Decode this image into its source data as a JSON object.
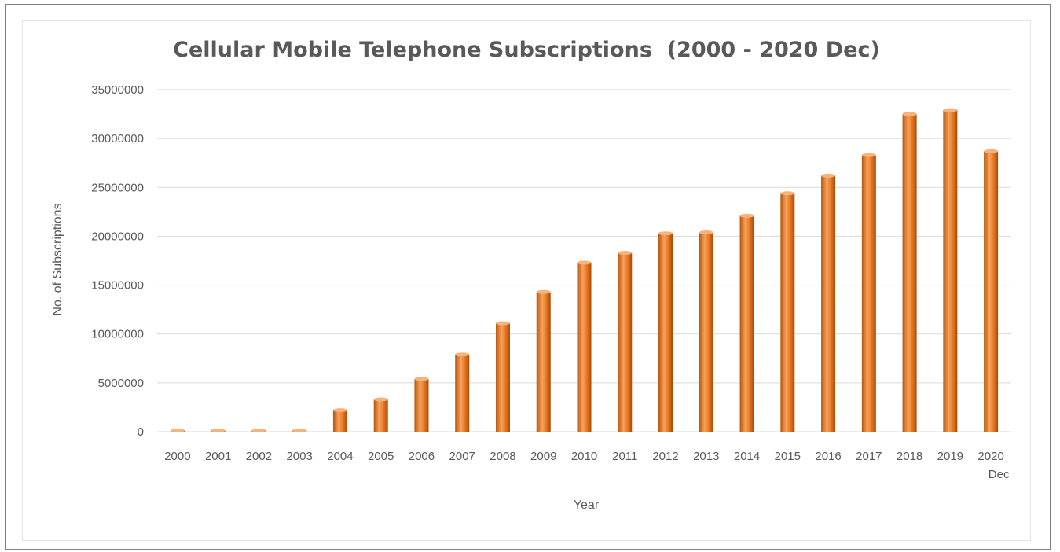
{
  "chart_data": {
    "type": "bar",
    "title": "Cellular Mobile Telephone Subscriptions  (2000 - 2020 Dec)",
    "xlabel": "Year",
    "ylabel": "No. of Subscriptions",
    "categories": [
      "2000",
      "2001",
      "2002",
      "2003",
      "2004",
      "2005",
      "2006",
      "2007",
      "2008",
      "2009",
      "2010",
      "2011",
      "2012",
      "2013",
      "2014",
      "2015",
      "2016",
      "2017",
      "2018",
      "2019",
      "2020 Dec"
    ],
    "values": [
      100000,
      100000,
      100000,
      100000,
      2200000,
      3300000,
      5400000,
      7900000,
      11100000,
      14300000,
      17300000,
      18300000,
      20300000,
      20400000,
      22100000,
      24400000,
      26200000,
      28300000,
      32500000,
      32900000,
      28700000
    ],
    "ylim": [
      0,
      35000000
    ],
    "yticks": [
      "0",
      "5000000",
      "10000000",
      "15000000",
      "20000000",
      "25000000",
      "30000000",
      "35000000"
    ],
    "grid": true,
    "legend": "none",
    "colors": {
      "bar": "#e46c0a",
      "bar_light": "#f9b27a",
      "bar_dark": "#a84d06",
      "grid": "#d9d9d9",
      "text": "#595959"
    }
  }
}
